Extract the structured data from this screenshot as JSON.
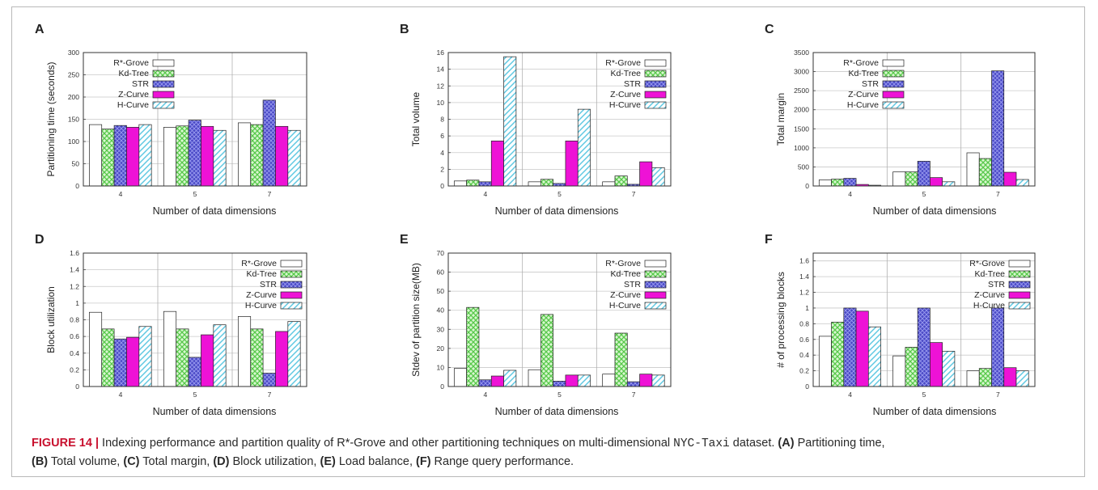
{
  "colors": {
    "R*-Grove": "#ffffff",
    "Kd-Tree": "#8ae07a",
    "STR": "#4a49c6",
    "Z-Curve": "#ee12d6",
    "H-Curve": "#7fd4e6"
  },
  "caption": {
    "label": "FIGURE 14 |",
    "text1": " Indexing performance and partition quality of R*-Grove and other partitioning techniques on multi-dimensional ",
    "dataset": "NYC-Taxi",
    "text2": " dataset. ",
    "A": "(A)",
    "A_t": " Partitioning time, ",
    "B": "(B)",
    "B_t": " Total volume, ",
    "C": "(C)",
    "C_t": " Total margin, ",
    "D": "(D)",
    "D_t": " Block utilization, ",
    "E": "(E)",
    "E_t": " Load balance, ",
    "F": "(F)",
    "F_t": " Range query performance."
  },
  "chart_data": [
    {
      "panel": "A",
      "type": "bar",
      "categories": [
        "4",
        "5",
        "7"
      ],
      "xlabel": "Number of data dimensions",
      "ylabel": "Partitioning time (seconds)",
      "ylim": [
        0,
        300
      ],
      "yticks": [
        "0",
        "50",
        "100",
        "150",
        "200",
        "250",
        "300"
      ],
      "legend": "top-left",
      "series": [
        {
          "name": "R*-Grove",
          "values": [
            138,
            132,
            142
          ]
        },
        {
          "name": "Kd-Tree",
          "values": [
            128,
            135,
            138
          ]
        },
        {
          "name": "STR",
          "values": [
            136,
            148,
            193
          ]
        },
        {
          "name": "Z-Curve",
          "values": [
            132,
            134,
            134
          ]
        },
        {
          "name": "H-Curve",
          "values": [
            138,
            125,
            125
          ]
        }
      ]
    },
    {
      "panel": "B",
      "type": "bar",
      "categories": [
        "4",
        "5",
        "7"
      ],
      "xlabel": "Number of data dimensions",
      "ylabel": "Total volume",
      "ylim": [
        0,
        16
      ],
      "yticks": [
        "0",
        "2",
        "4",
        "6",
        "8",
        "10",
        "12",
        "14",
        "16"
      ],
      "legend": "top-right",
      "series": [
        {
          "name": "R*-Grove",
          "values": [
            0.6,
            0.5,
            0.5
          ]
        },
        {
          "name": "Kd-Tree",
          "values": [
            0.7,
            0.8,
            1.2
          ]
        },
        {
          "name": "STR",
          "values": [
            0.5,
            0.3,
            0.2
          ]
        },
        {
          "name": "Z-Curve",
          "values": [
            5.4,
            5.4,
            2.9
          ]
        },
        {
          "name": "H-Curve",
          "values": [
            15.5,
            9.2,
            2.2
          ]
        }
      ]
    },
    {
      "panel": "C",
      "type": "bar",
      "categories": [
        "4",
        "5",
        "7"
      ],
      "xlabel": "Number of data dimensions",
      "ylabel": "Total margin",
      "ylim": [
        0,
        3500
      ],
      "yticks": [
        "0",
        "500",
        "1000",
        "1500",
        "2000",
        "2500",
        "3000",
        "3500"
      ],
      "legend": "top-left",
      "series": [
        {
          "name": "R*-Grove",
          "values": [
            160,
            370,
            870
          ]
        },
        {
          "name": "Kd-Tree",
          "values": [
            180,
            370,
            720
          ]
        },
        {
          "name": "STR",
          "values": [
            200,
            650,
            3020
          ]
        },
        {
          "name": "Z-Curve",
          "values": [
            40,
            220,
            360
          ]
        },
        {
          "name": "H-Curve",
          "values": [
            20,
            110,
            170
          ]
        }
      ]
    },
    {
      "panel": "D",
      "type": "bar",
      "categories": [
        "4",
        "5",
        "7"
      ],
      "xlabel": "Number of data dimensions",
      "ylabel": "Block utilization",
      "ylim": [
        0,
        1.6
      ],
      "yticks": [
        "0",
        "0.2",
        "0.4",
        "0.6",
        "0.8",
        "1",
        "1.2",
        "1.4",
        "1.6"
      ],
      "legend": "top-right",
      "series": [
        {
          "name": "R*-Grove",
          "values": [
            0.89,
            0.9,
            0.84
          ]
        },
        {
          "name": "Kd-Tree",
          "values": [
            0.69,
            0.69,
            0.69
          ]
        },
        {
          "name": "STR",
          "values": [
            0.57,
            0.35,
            0.16
          ]
        },
        {
          "name": "Z-Curve",
          "values": [
            0.59,
            0.62,
            0.66
          ]
        },
        {
          "name": "H-Curve",
          "values": [
            0.72,
            0.74,
            0.78
          ]
        }
      ]
    },
    {
      "panel": "E",
      "type": "bar",
      "categories": [
        "4",
        "5",
        "7"
      ],
      "xlabel": "Number of data dimensions",
      "ylabel": "Stdev of partition size(MB)",
      "ylim": [
        0,
        70
      ],
      "yticks": [
        "0",
        "10",
        "20",
        "30",
        "40",
        "50",
        "60",
        "70"
      ],
      "legend": "top-right",
      "series": [
        {
          "name": "R*-Grove",
          "values": [
            9.5,
            8.8,
            6.5
          ]
        },
        {
          "name": "Kd-Tree",
          "values": [
            41.5,
            37.8,
            28
          ]
        },
        {
          "name": "STR",
          "values": [
            3.5,
            2.8,
            2.5
          ]
        },
        {
          "name": "Z-Curve",
          "values": [
            5.5,
            6,
            6.5
          ]
        },
        {
          "name": "H-Curve",
          "values": [
            8.5,
            6,
            6
          ]
        }
      ]
    },
    {
      "panel": "F",
      "type": "bar",
      "categories": [
        "4",
        "5",
        "7"
      ],
      "xlabel": "Number of data dimensions",
      "ylabel": "# of processing blocks",
      "ylim": [
        0,
        1.7
      ],
      "yticks": [
        "0",
        "0.2",
        "0.4",
        "0.6",
        "0.8",
        "1",
        "1.2",
        "1.4",
        "1.6"
      ],
      "legend": "top-right",
      "series": [
        {
          "name": "R*-Grove",
          "values": [
            0.64,
            0.39,
            0.2
          ]
        },
        {
          "name": "Kd-Tree",
          "values": [
            0.82,
            0.5,
            0.23
          ]
        },
        {
          "name": "STR",
          "values": [
            1.0,
            1.0,
            1.0
          ]
        },
        {
          "name": "Z-Curve",
          "values": [
            0.96,
            0.56,
            0.24
          ]
        },
        {
          "name": "H-Curve",
          "values": [
            0.76,
            0.45,
            0.2
          ]
        }
      ]
    }
  ]
}
